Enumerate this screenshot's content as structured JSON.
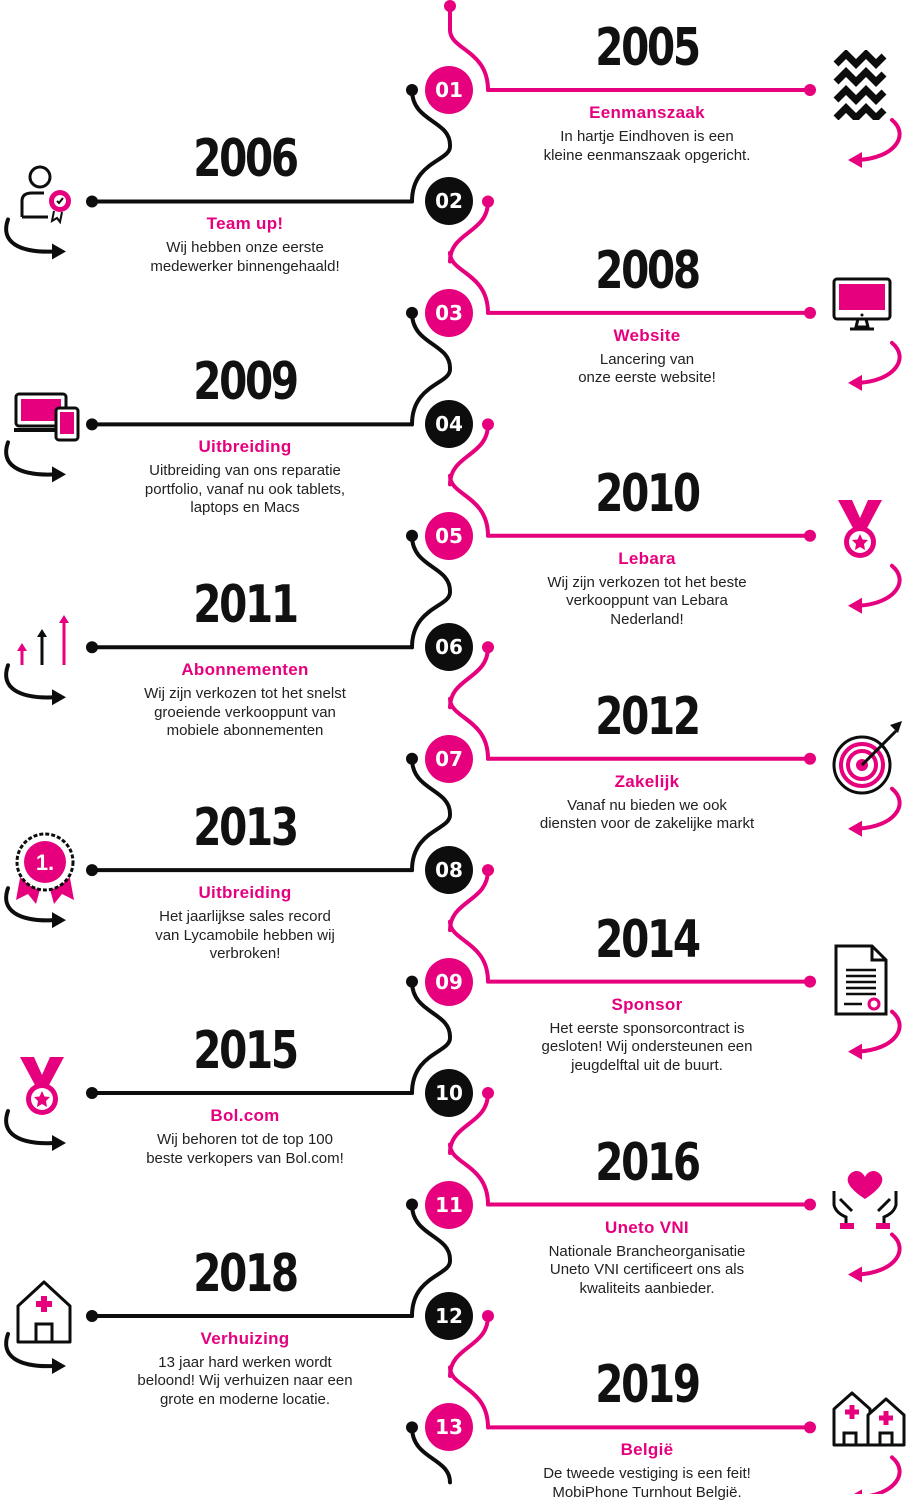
{
  "colors": {
    "accent": "#e6007e",
    "dark": "#0d0d0d"
  },
  "milestones": [
    {
      "num": "01",
      "year": "2005",
      "title": "Eenmanszaak",
      "desc": "In hartje Eindhoven is een\nkleine eenmanszaak opgericht.",
      "icon": "waves-icon"
    },
    {
      "num": "02",
      "year": "2006",
      "title": "Team up!",
      "desc": "Wij hebben onze eerste\nmedewerker binnengehaald!",
      "icon": "person-certificate-icon"
    },
    {
      "num": "03",
      "year": "2008",
      "title": "Website",
      "desc": "Lancering van\nonze eerste website!",
      "icon": "monitor-icon"
    },
    {
      "num": "04",
      "year": "2009",
      "title": "Uitbreiding",
      "desc": "Uitbreiding van ons reparatie\nportfolio, vanaf nu ook tablets,\nlaptops en Macs",
      "icon": "laptop-tablet-icon"
    },
    {
      "num": "05",
      "year": "2010",
      "title": "Lebara",
      "desc": "Wij zijn verkozen tot het beste\nverkooppunt van Lebara\nNederland!",
      "icon": "medal-icon"
    },
    {
      "num": "06",
      "year": "2011",
      "title": "Abonnementen",
      "desc": "Wij zijn verkozen tot het snelst\ngroeiende verkooppunt van\nmobiele abonnementen",
      "icon": "growth-arrows-icon"
    },
    {
      "num": "07",
      "year": "2012",
      "title": "Zakelijk",
      "desc": "Vanaf nu bieden we ook\ndiensten voor de zakelijke markt",
      "icon": "target-icon"
    },
    {
      "num": "08",
      "year": "2013",
      "title": "Uitbreiding",
      "desc": "Het jaarlijkse sales record\nvan Lycamobile hebben wij\nverbroken!",
      "icon": "first-place-badge-icon",
      "icon_text": "1."
    },
    {
      "num": "09",
      "year": "2014",
      "title": "Sponsor",
      "desc": "Het eerste sponsorcontract is\ngesloten! Wij ondersteunen een\njeugdelftal uit de buurt.",
      "icon": "contract-icon"
    },
    {
      "num": "10",
      "year": "2015",
      "title": "Bol.com",
      "desc": "Wij behoren tot de top 100\nbeste verkopers van Bol.com!",
      "icon": "medal-icon"
    },
    {
      "num": "11",
      "year": "2016",
      "title": "Uneto VNI",
      "desc": "Nationale Brancheorganisatie\nUneto VNI certificeert ons als\nkwaliteits aanbieder.",
      "icon": "heart-hands-icon"
    },
    {
      "num": "12",
      "year": "2018",
      "title": "Verhuizing",
      "desc": "13 jaar hard werken wordt\nbeloond! Wij verhuizen naar een\ngrote en moderne locatie.",
      "icon": "house-cross-icon"
    },
    {
      "num": "13",
      "year": "2019",
      "title": "België",
      "desc": "De tweede vestiging is een feit!\nMobiPhone Turnhout België.",
      "icon": "two-houses-icon"
    }
  ]
}
